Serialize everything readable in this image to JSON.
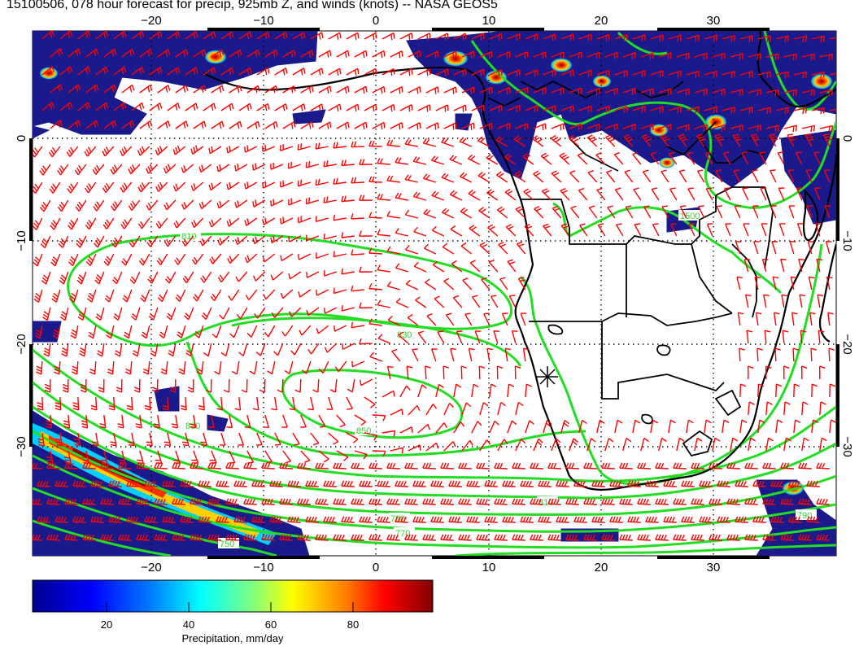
{
  "title": "15100506, 078 hour forecast for precip, 925mb Z, and winds (knots) -- NASA GEOS5",
  "axes": {
    "lon_ticks": [
      "−20",
      "−10",
      "0",
      "10",
      "20",
      "30"
    ],
    "lat_ticks_left": [
      "0",
      "−10",
      "−20",
      "−30"
    ],
    "lat_ticks_right": [
      "0",
      "−10",
      "−20",
      "−30"
    ],
    "lon_range": [
      -30,
      41
    ],
    "lat_range": [
      -40,
      11
    ],
    "grid": "dotted"
  },
  "colorbar": {
    "label": "Precipitation, mm/day",
    "ticks": [
      "20",
      "40",
      "60",
      "80"
    ],
    "range": [
      0,
      98
    ]
  },
  "contour_labels": [
    "810",
    "830",
    "850",
    "790",
    "770",
    "750",
    "830",
    "810",
    "790",
    "1500"
  ],
  "colors": {
    "wind_barbs": "#ff0000",
    "contours": "#22dd22",
    "coastlines": "#000000",
    "precip_low": "#1a1a8c"
  },
  "layers": [
    "precipitation (shaded)",
    "925mb height (green contours)",
    "wind barbs (red)",
    "coastlines & borders (black)"
  ]
}
